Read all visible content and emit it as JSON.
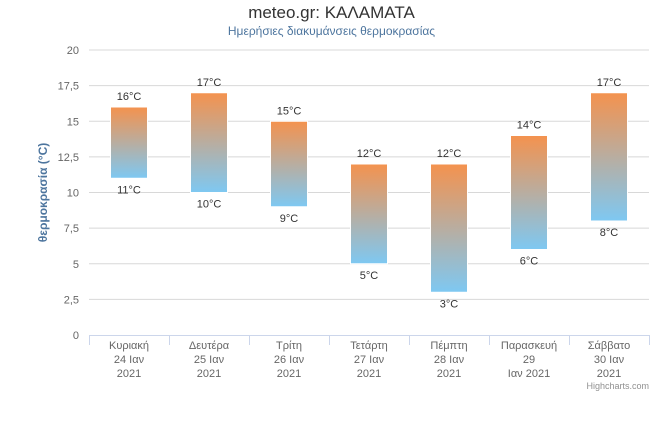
{
  "chart_data": {
    "type": "columnrange",
    "title": "meteo.gr: ΚΑΛΑΜΑΤΑ",
    "subtitle": "Ημερήσιες διακυμάνσεις θερμοκρασίας",
    "ylabel": "θερμοκρασία (°C)",
    "ylim": [
      0,
      20
    ],
    "yticks": [
      0,
      2.5,
      5,
      7.5,
      10,
      12.5,
      15,
      17.5,
      20
    ],
    "ytick_labels": [
      "0",
      "2,5",
      "5",
      "7,5",
      "10",
      "12,5",
      "15",
      "17,5",
      "20"
    ],
    "categories": [
      [
        "Κυριακή",
        "24 Ιαν",
        "2021"
      ],
      [
        "Δευτέρα",
        "25 Ιαν",
        "2021"
      ],
      [
        "Τρίτη",
        "26 Ιαν",
        "2021"
      ],
      [
        "Τετάρτη",
        "27 Ιαν",
        "2021"
      ],
      [
        "Πέμπτη",
        "28 Ιαν",
        "2021"
      ],
      [
        "Παρασκευή",
        "29",
        "Ιαν 2021"
      ],
      [
        "Σάββατο",
        "30 Ιαν",
        "2021"
      ]
    ],
    "low": [
      11,
      10,
      9,
      5,
      3,
      6,
      8
    ],
    "high": [
      16,
      17,
      15,
      12,
      12,
      14,
      17
    ],
    "low_labels": [
      "11°C",
      "10°C",
      "9°C",
      "5°C",
      "3°C",
      "6°C",
      "8°C"
    ],
    "high_labels": [
      "16°C",
      "17°C",
      "15°C",
      "12°C",
      "12°C",
      "14°C",
      "17°C"
    ],
    "colors": {
      "top": "#f4924e",
      "bottom": "#7ec8f2",
      "grid": "#d8d8d8",
      "axis": "#ccd6eb",
      "ylabel": "#4d759e"
    },
    "grid": true,
    "credits": "Highcharts.com"
  }
}
